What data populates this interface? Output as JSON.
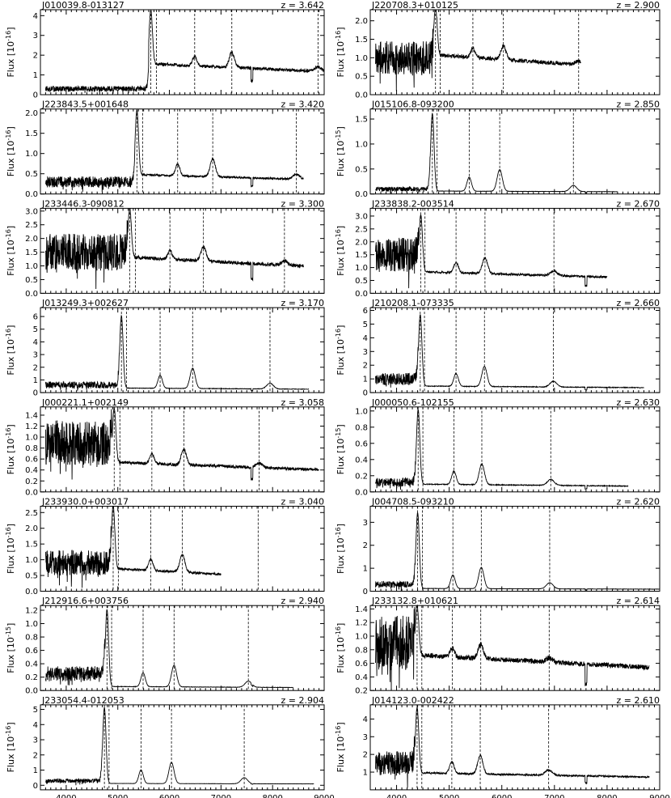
{
  "figure": {
    "xaxis_ticks": [
      4000,
      5000,
      6000,
      7000,
      8000,
      9000
    ],
    "xlim": [
      3500,
      9000
    ]
  },
  "chart_data": [
    {
      "type": "line",
      "title": "J010039.8-013127",
      "redshift_label": "z = 3.642",
      "z": 3.642,
      "ylabel": "Flux [10^-16]",
      "ylabel_exp": "-16",
      "ylim": [
        0,
        4.3
      ],
      "yticks": [
        0,
        1,
        2,
        3,
        4
      ],
      "xlim": [
        3500,
        9000
      ],
      "lines": [
        5640,
        5750,
        6490,
        7210,
        8880
      ],
      "x_end": 9000,
      "cont": {
        "blue": 0.3,
        "red": 1.3
      },
      "peak": 4.0
    },
    {
      "type": "line",
      "title": "J220708.3+010125",
      "redshift_label": "z = 2.900",
      "z": 2.9,
      "ylabel": "Flux [10^-16]",
      "ylabel_exp": "-16",
      "ylim": [
        0,
        2.3
      ],
      "yticks": [
        0.0,
        0.5,
        1.0,
        1.5,
        2.0
      ],
      "xlim": [
        3500,
        9000
      ],
      "lines": [
        4740,
        4830,
        5450,
        6030,
        7460
      ],
      "x_end": 7500,
      "cont": {
        "blue": 1.0,
        "red": 0.9
      },
      "peak": 2.2
    },
    {
      "type": "line",
      "title": "J223843.5+001648",
      "redshift_label": "z = 3.420",
      "z": 3.42,
      "ylabel": "Flux [10^-16]",
      "ylabel_exp": "-16",
      "ylim": [
        0,
        2.1
      ],
      "yticks": [
        0.0,
        0.5,
        1.0,
        1.5,
        2.0
      ],
      "xlim": [
        3500,
        9000
      ],
      "lines": [
        5370,
        5480,
        6160,
        6840,
        8460
      ],
      "x_end": 8600,
      "cont": {
        "blue": 0.3,
        "red": 0.4
      },
      "peak": 2.0
    },
    {
      "type": "line",
      "title": "J015106.8-093200",
      "redshift_label": "z = 2.850",
      "z": 2.85,
      "ylabel": "Flux [10^-15]",
      "ylabel_exp": "-15",
      "ylim": [
        0,
        1.7
      ],
      "yticks": [
        0.0,
        0.5,
        1.0,
        1.5
      ],
      "xlim": [
        3500,
        9000
      ],
      "lines": [
        4680,
        4770,
        5380,
        5960,
        7360
      ],
      "x_end": 8200,
      "cont": {
        "blue": 0.1,
        "red": 0.05
      },
      "peak": 1.6
    },
    {
      "type": "line",
      "title": "J233446.3-090812",
      "redshift_label": "z = 3.300",
      "z": 3.3,
      "ylabel": "Flux [10^-16]",
      "ylabel_exp": "-16",
      "ylim": [
        0,
        3.1
      ],
      "yticks": [
        0.0,
        0.5,
        1.0,
        1.5,
        2.0,
        2.5,
        3.0
      ],
      "xlim": [
        3500,
        9000
      ],
      "lines": [
        5230,
        5340,
        6010,
        6660,
        8230
      ],
      "x_end": 8600,
      "cont": {
        "blue": 1.5,
        "red": 1.1
      },
      "peak": 2.9
    },
    {
      "type": "line",
      "title": "J233838.2-003514",
      "redshift_label": "z = 2.670",
      "z": 2.67,
      "ylabel": "Flux [10^-16]",
      "ylabel_exp": "-16",
      "ylim": [
        0,
        3.3
      ],
      "yticks": [
        0.0,
        0.5,
        1.0,
        1.5,
        2.0,
        2.5,
        3.0
      ],
      "xlim": [
        3500,
        9000
      ],
      "lines": [
        4460,
        4540,
        5130,
        5680,
        6990
      ],
      "x_end": 8000,
      "cont": {
        "blue": 1.5,
        "red": 0.7
      },
      "peak": 2.9
    },
    {
      "type": "line",
      "title": "J013249.3+002627",
      "redshift_label": "z = 3.170",
      "z": 3.17,
      "ylabel": "Flux [10^-16]",
      "ylabel_exp": "-16",
      "ylim": [
        0,
        6.7
      ],
      "yticks": [
        0,
        1,
        2,
        3,
        4,
        5,
        6
      ],
      "xlim": [
        3500,
        9000
      ],
      "lines": [
        5070,
        5170,
        5820,
        6450,
        7950
      ],
      "x_end": 8700,
      "cont": {
        "blue": 0.6,
        "red": 0.3
      },
      "peak": 6.0
    },
    {
      "type": "line",
      "title": "J210208.1-073335",
      "redshift_label": "z = 2.660",
      "z": 2.66,
      "ylabel": "Flux [10^-16]",
      "ylabel_exp": "-16",
      "ylim": [
        0,
        6.2
      ],
      "yticks": [
        0,
        1,
        2,
        3,
        4,
        5,
        6
      ],
      "xlim": [
        3500,
        9000
      ],
      "lines": [
        4450,
        4530,
        5130,
        5670,
        6980
      ],
      "x_end": 8700,
      "cont": {
        "blue": 1.0,
        "red": 0.4
      },
      "peak": 5.6
    },
    {
      "type": "line",
      "title": "J000221.1+002149",
      "redshift_label": "z = 3.058",
      "z": 3.058,
      "ylabel": "Flux [10^-16]",
      "ylabel_exp": "-16",
      "ylim": [
        0,
        1.55
      ],
      "yticks": [
        0.0,
        0.2,
        0.4,
        0.6,
        0.8,
        1.0,
        1.2,
        1.4
      ],
      "xlim": [
        3500,
        9000
      ],
      "lines": [
        4930,
        5040,
        5660,
        6280,
        7740
      ],
      "x_end": 8900,
      "cont": {
        "blue": 0.9,
        "red": 0.45
      },
      "peak": 1.45
    },
    {
      "type": "line",
      "title": "J000050.6-102155",
      "redshift_label": "z = 2.630",
      "z": 2.63,
      "ylabel": "Flux [10^-15]",
      "ylabel_exp": "-15",
      "ylim": [
        0,
        1.05
      ],
      "yticks": [
        0.0,
        0.2,
        0.4,
        0.6,
        0.8,
        1.0
      ],
      "xlim": [
        3500,
        9000
      ],
      "lines": [
        4410,
        4500,
        5090,
        5620,
        6930
      ],
      "x_end": 8400,
      "cont": {
        "blue": 0.12,
        "red": 0.08
      },
      "peak": 1.0
    },
    {
      "type": "line",
      "title": "J233930.0+003017",
      "redshift_label": "z = 3.040",
      "z": 3.04,
      "ylabel": "Flux [10^-16]",
      "ylabel_exp": "-16",
      "ylim": [
        0,
        2.7
      ],
      "yticks": [
        0.0,
        0.5,
        1.0,
        1.5,
        2.0,
        2.5
      ],
      "xlim": [
        3500,
        9000
      ],
      "lines": [
        4910,
        5010,
        5640,
        6250,
        7720
      ],
      "x_end": 7000,
      "cont": {
        "blue": 0.9,
        "red": 0.6
      },
      "peak": 2.6
    },
    {
      "type": "line",
      "title": "J004708.5-093210",
      "redshift_label": "z = 2.620",
      "z": 2.62,
      "ylabel": "Flux [10^-16]",
      "ylabel_exp": "-16",
      "ylim": [
        0,
        3.7
      ],
      "yticks": [
        0,
        1,
        2,
        3
      ],
      "xlim": [
        3500,
        9000
      ],
      "lines": [
        4400,
        4490,
        5070,
        5610,
        6910
      ],
      "x_end": 9000,
      "cont": {
        "blue": 0.3,
        "red": 0.1
      },
      "peak": 3.4
    },
    {
      "type": "line",
      "title": "J212916.6+003756",
      "redshift_label": "z = 2.940",
      "z": 2.94,
      "ylabel": "Flux [10^-15]",
      "ylabel_exp": "-15",
      "ylim": [
        0,
        1.27
      ],
      "yticks": [
        0.0,
        0.2,
        0.4,
        0.6,
        0.8,
        1.0,
        1.2
      ],
      "xlim": [
        3500,
        9000
      ],
      "lines": [
        4790,
        4880,
        5490,
        6090,
        7530
      ],
      "x_end": 8400,
      "cont": {
        "blue": 0.25,
        "red": 0.05
      },
      "peak": 1.2
    },
    {
      "type": "line",
      "title": "J233132.8+010621",
      "redshift_label": "z = 2.614",
      "z": 2.614,
      "ylabel": "Flux [10^-16]",
      "ylabel_exp": "-16",
      "ylim": [
        0.2,
        1.45
      ],
      "yticks": [
        0.2,
        0.4,
        0.6,
        0.8,
        1.0,
        1.2,
        1.4
      ],
      "xlim": [
        3500,
        9000
      ],
      "lines": [
        4390,
        4480,
        5060,
        5600,
        6900
      ],
      "x_end": 8800,
      "cont": {
        "blue": 0.9,
        "red": 0.6
      },
      "peak": 1.35
    },
    {
      "type": "line",
      "title": "J233054.4-012053",
      "redshift_label": "z = 2.904",
      "z": 2.904,
      "ylabel": "Flux [10^-16]",
      "ylabel_exp": "-16",
      "ylim": [
        -0.3,
        5.3
      ],
      "yticks": [
        0,
        1,
        2,
        3,
        4,
        5
      ],
      "xlim": [
        3500,
        9000
      ],
      "lines": [
        4740,
        4830,
        5450,
        6040,
        7450
      ],
      "x_end": 8800,
      "cont": {
        "blue": 0.3,
        "red": 0.1
      },
      "peak": 5.1
    },
    {
      "type": "line",
      "title": "J014123.0-002422",
      "redshift_label": "z = 2.610",
      "z": 2.61,
      "ylabel": "Flux [10^-16]",
      "ylabel_exp": "-16",
      "ylim": [
        0,
        4.8
      ],
      "yticks": [
        1,
        2,
        3,
        4
      ],
      "xlim": [
        3500,
        9000
      ],
      "lines": [
        4390,
        4480,
        5050,
        5590,
        6890
      ],
      "x_end": 8800,
      "cont": {
        "blue": 1.5,
        "red": 0.8
      },
      "peak": 4.5
    }
  ]
}
